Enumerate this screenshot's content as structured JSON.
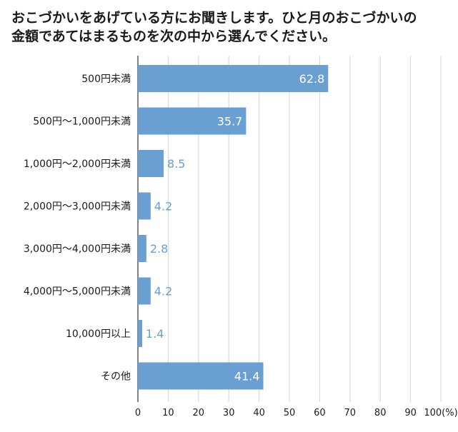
{
  "chart_data": {
    "type": "bar",
    "orientation": "horizontal",
    "title_lines": [
      "おこづかいをあげている方にお聞きします。ひと月のおこづかいの",
      "金額であてはまるものを次の中から選んでください。"
    ],
    "categories": [
      "500円未満",
      "500円〜1,000円未満",
      "1,000円〜2,000円未満",
      "2,000円〜3,000円未満",
      "3,000円〜4,000円未満",
      "4,000円〜5,000円未満",
      "10,000円以上",
      "その他"
    ],
    "values": [
      62.8,
      35.7,
      8.5,
      4.2,
      2.8,
      4.2,
      1.4,
      41.4
    ],
    "xlim": [
      0,
      100
    ],
    "x_ticks": [
      "0",
      "10",
      "20",
      "30",
      "40",
      "50",
      "60",
      "70",
      "80",
      "90",
      "100(%)"
    ],
    "grid": true,
    "bar_color": "#6a9fd2",
    "label_inside_color": "#ffffff",
    "label_outside_color": "#6a9fd2"
  }
}
